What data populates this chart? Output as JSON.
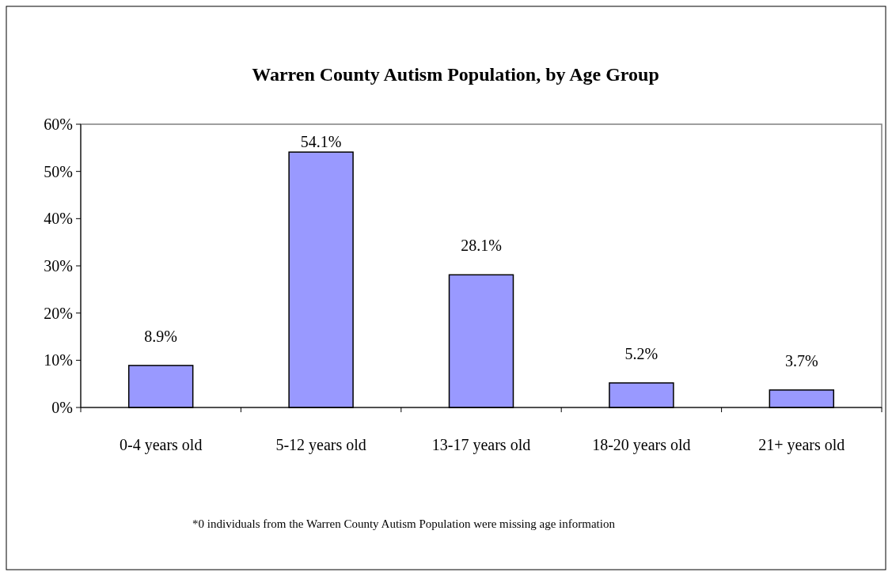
{
  "chart_data": {
    "type": "bar",
    "title": "Warren County Autism Population, by Age Group",
    "categories": [
      "0-4 years old",
      "5-12 years old",
      "13-17 years old",
      "18-20 years old",
      "21+ years old"
    ],
    "values": [
      8.9,
      54.1,
      28.1,
      5.2,
      3.7
    ],
    "value_labels": [
      "8.9%",
      "54.1%",
      "28.1%",
      "5.2%",
      "3.7%"
    ],
    "color": "#9999ff",
    "ylim": [
      0,
      60
    ],
    "yticks": [
      {
        "value": 0,
        "label": "0%"
      },
      {
        "value": 10,
        "label": "10%"
      },
      {
        "value": 20,
        "label": "20%"
      },
      {
        "value": 30,
        "label": "30%"
      },
      {
        "value": 40,
        "label": "40%"
      },
      {
        "value": 50,
        "label": "50%"
      },
      {
        "value": 60,
        "label": "60%"
      }
    ],
    "annotations": [
      "*0 individuals from the Warren County Autism Population were missing age information"
    ]
  }
}
